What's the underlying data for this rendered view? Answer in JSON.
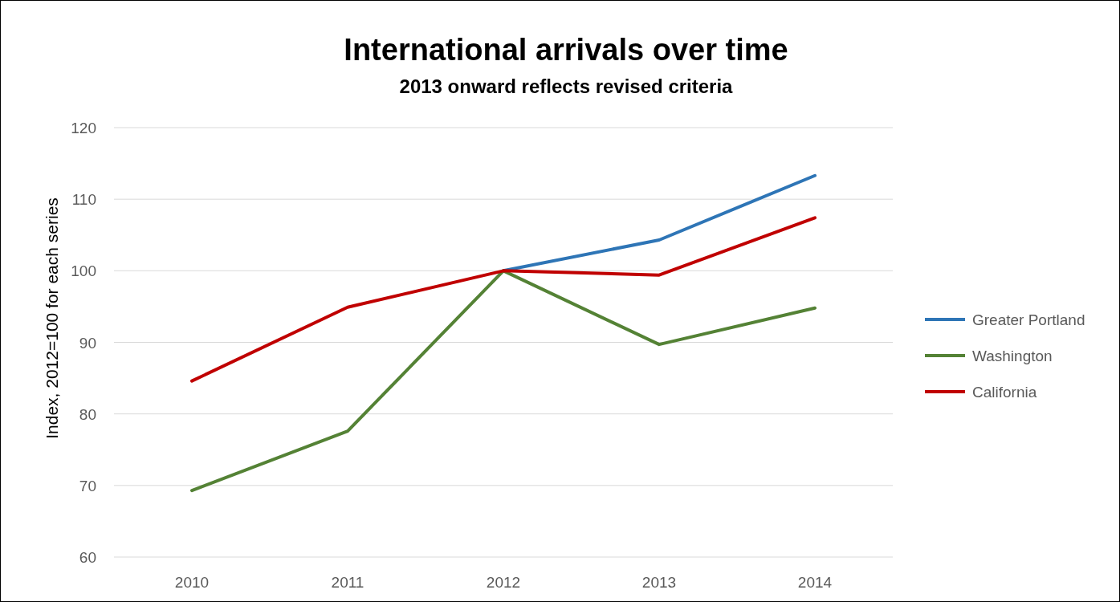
{
  "chart_data": {
    "type": "line",
    "title": "International arrivals over time",
    "subtitle": "2013 onward reflects revised criteria",
    "ylabel": "Index, 2012=100 for each series",
    "categories": [
      "2010",
      "2011",
      "2012",
      "2013",
      "2014"
    ],
    "series": [
      {
        "name": "Greater Portland",
        "color": "#2e75b6",
        "values": [
          null,
          null,
          100,
          104.3,
          113.3
        ]
      },
      {
        "name": "Washington",
        "color": "#548235",
        "values": [
          69.3,
          77.6,
          100,
          89.7,
          94.8
        ]
      },
      {
        "name": "California",
        "color": "#c00000",
        "values": [
          84.6,
          94.9,
          100,
          99.4,
          107.4
        ]
      }
    ],
    "ylim": [
      60,
      120
    ],
    "yticks": [
      60,
      70,
      80,
      90,
      100,
      110,
      120
    ],
    "grid": "y",
    "legend": "right",
    "marker": "none",
    "line_style": "solid"
  }
}
